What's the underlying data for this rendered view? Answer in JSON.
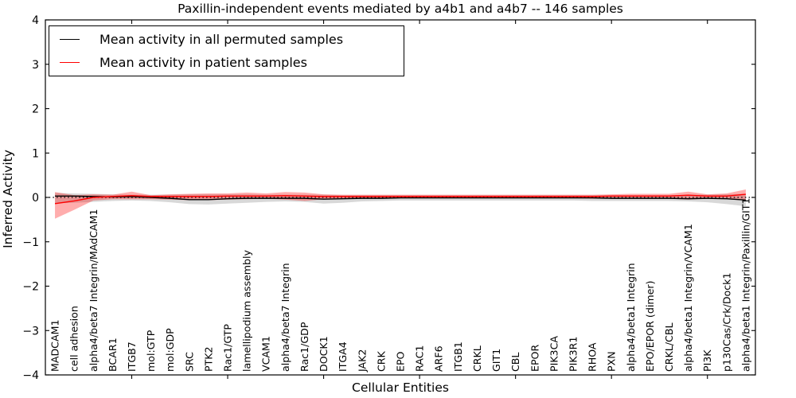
{
  "title": "Paxillin-independent events mediated by a4b1 and a4b7 -- 146 samples",
  "legend": {
    "items": [
      {
        "label": "Mean activity in all permuted samples",
        "color": "#000000"
      },
      {
        "label": "Mean activity in patient samples",
        "color": "#ff0000"
      }
    ]
  },
  "chart_data": {
    "type": "line",
    "title": "Paxillin-independent events mediated by a4b1 and a4b7 -- 146 samples",
    "xlabel": "Cellular Entities",
    "ylabel": "Inferred Activity",
    "ylim": [
      -4,
      4
    ],
    "yticks": [
      4,
      3,
      2,
      1,
      0,
      -1,
      -2,
      -3,
      -4
    ],
    "ytick_labels": [
      "4",
      "3",
      "2",
      "1",
      "0",
      "−1",
      "−2",
      "−3",
      "−4"
    ],
    "grid": false,
    "zero_reference_line": true,
    "legend_position": "upper left",
    "top_tick_indices": [
      4,
      9,
      14,
      19,
      24,
      29,
      34
    ],
    "categories": [
      "MADCAM1",
      "cell adhesion",
      "alpha4/beta7 Integrin/MAdCAM1",
      "BCAR1",
      "ITGB7",
      "mol:GTP",
      "mol:GDP",
      "SRC",
      "PTK2",
      "Rac1/GTP",
      "lamellipodium assembly",
      "VCAM1",
      "alpha4/beta7 Integrin",
      "Rac1/GDP",
      "DOCK1",
      "ITGA4",
      "JAK2",
      "CRK",
      "EPO",
      "RAC1",
      "ARF6",
      "ITGB1",
      "CRKL",
      "GIT1",
      "CBL",
      "EPOR",
      "PIK3CA",
      "PIK3R1",
      "RHOA",
      "PXN",
      "alpha4/beta1 Integrin",
      "EPO/EPOR (dimer)",
      "CRKL/CBL",
      "alpha4/beta1 Integrin/VCAM1",
      "PI3K",
      "p130Cas/Crk/Dock1",
      "alpha4/beta1 Integrin/Paxillin/GIT1"
    ],
    "series": [
      {
        "name": "Mean activity in all permuted samples",
        "color": "#000000",
        "values": [
          0.03,
          0.03,
          0.02,
          0.01,
          0.02,
          0.0,
          -0.02,
          -0.05,
          -0.05,
          -0.03,
          -0.02,
          -0.02,
          -0.02,
          -0.02,
          -0.04,
          -0.03,
          -0.02,
          -0.02,
          -0.01,
          -0.01,
          -0.01,
          -0.01,
          -0.01,
          -0.01,
          -0.01,
          -0.01,
          -0.01,
          -0.01,
          -0.01,
          -0.02,
          -0.02,
          -0.02,
          -0.02,
          -0.03,
          -0.02,
          -0.03,
          -0.06
        ]
      },
      {
        "name": "Mean activity in patient samples",
        "color": "#ff0000",
        "values": [
          -0.14,
          -0.08,
          0.0,
          0.02,
          0.04,
          0.02,
          0.02,
          0.02,
          0.02,
          0.03,
          0.03,
          0.03,
          0.04,
          0.03,
          0.02,
          0.02,
          0.02,
          0.02,
          0.02,
          0.02,
          0.02,
          0.02,
          0.02,
          0.02,
          0.02,
          0.02,
          0.02,
          0.02,
          0.02,
          0.03,
          0.03,
          0.03,
          0.03,
          0.05,
          0.03,
          0.03,
          0.07
        ]
      }
    ],
    "bands": [
      {
        "name": "permuted samples range",
        "color": "#999999",
        "opacity": 0.38,
        "upper": [
          0.1,
          0.09,
          0.08,
          0.07,
          0.06,
          0.06,
          0.06,
          0.07,
          0.07,
          0.07,
          0.07,
          0.06,
          0.06,
          0.06,
          0.06,
          0.05,
          0.05,
          0.05,
          0.05,
          0.05,
          0.05,
          0.05,
          0.05,
          0.05,
          0.05,
          0.05,
          0.05,
          0.05,
          0.05,
          0.05,
          0.05,
          0.05,
          0.05,
          0.06,
          0.06,
          0.07,
          0.08
        ],
        "lower": [
          -0.13,
          -0.12,
          -0.1,
          -0.08,
          -0.07,
          -0.08,
          -0.11,
          -0.15,
          -0.16,
          -0.14,
          -0.12,
          -0.1,
          -0.09,
          -0.1,
          -0.14,
          -0.12,
          -0.09,
          -0.08,
          -0.07,
          -0.07,
          -0.07,
          -0.07,
          -0.07,
          -0.07,
          -0.07,
          -0.07,
          -0.07,
          -0.07,
          -0.08,
          -0.08,
          -0.08,
          -0.08,
          -0.08,
          -0.09,
          -0.11,
          -0.15,
          -0.2
        ]
      },
      {
        "name": "patient samples range",
        "color": "#ff0000",
        "opacity": 0.32,
        "upper": [
          0.12,
          0.05,
          0.07,
          0.06,
          0.13,
          0.05,
          0.07,
          0.08,
          0.09,
          0.09,
          0.11,
          0.09,
          0.12,
          0.11,
          0.07,
          0.06,
          0.06,
          0.06,
          0.06,
          0.06,
          0.06,
          0.06,
          0.06,
          0.06,
          0.06,
          0.06,
          0.06,
          0.06,
          0.06,
          0.07,
          0.08,
          0.08,
          0.08,
          0.13,
          0.07,
          0.09,
          0.18
        ],
        "lower": [
          -0.48,
          -0.28,
          -0.07,
          -0.04,
          -0.04,
          -0.04,
          -0.05,
          -0.06,
          -0.06,
          -0.05,
          -0.04,
          -0.03,
          -0.05,
          -0.08,
          -0.04,
          -0.03,
          -0.02,
          -0.02,
          -0.02,
          -0.02,
          -0.02,
          -0.02,
          -0.02,
          -0.02,
          -0.02,
          -0.02,
          -0.02,
          -0.02,
          -0.03,
          -0.03,
          -0.03,
          -0.03,
          -0.03,
          -0.05,
          -0.03,
          -0.04,
          -0.07
        ]
      }
    ]
  }
}
